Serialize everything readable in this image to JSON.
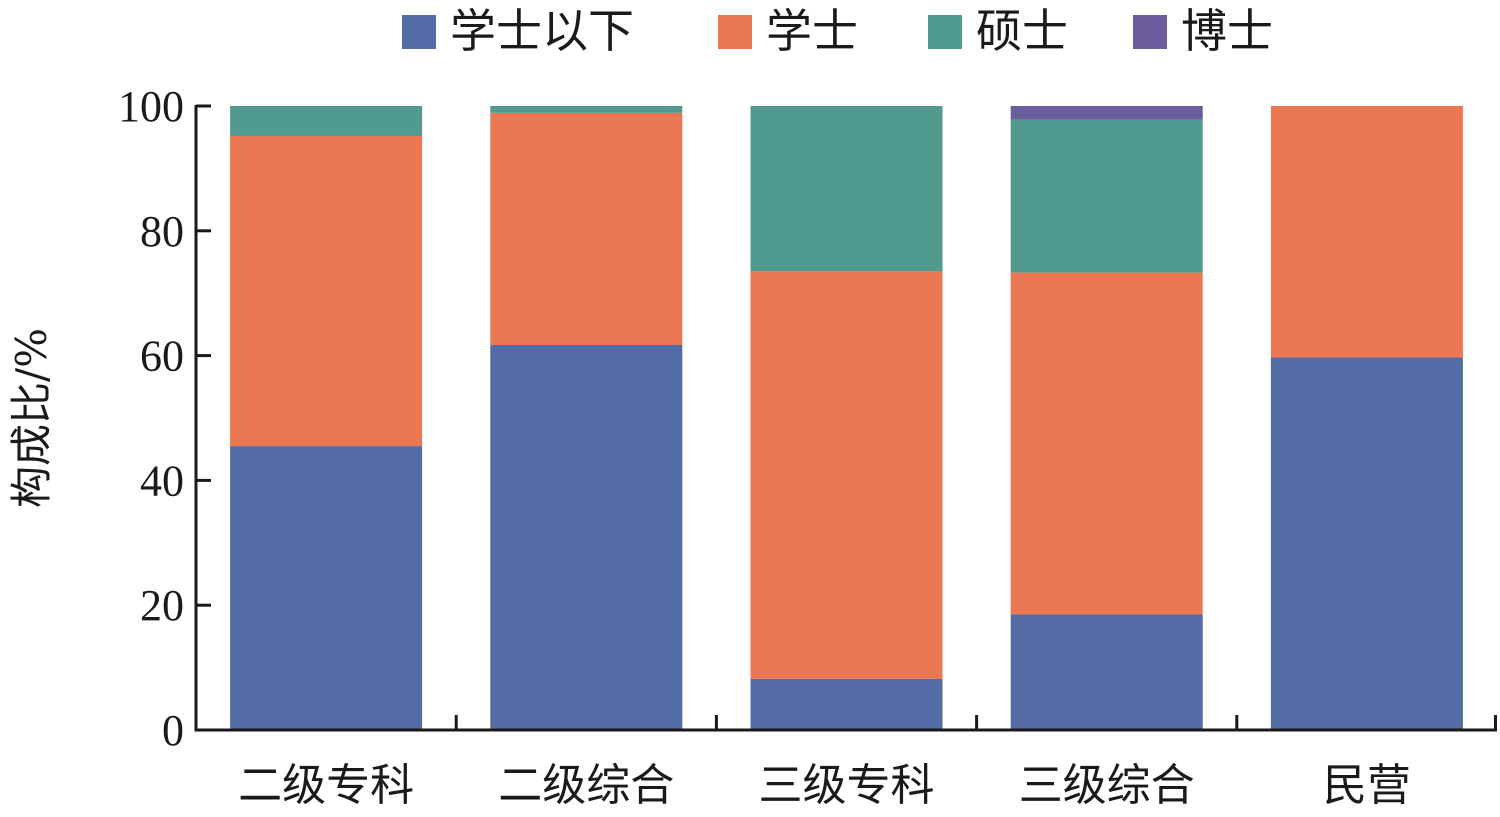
{
  "chart_data": {
    "type": "bar",
    "stacked": true,
    "categories": [
      "二级专科",
      "二级综合",
      "三级专科",
      "三级综合",
      "民营"
    ],
    "series": [
      {
        "name": "学士以下",
        "color": "#536CA6",
        "values": [
          45.5,
          61.7,
          8.2,
          18.5,
          59.7
        ]
      },
      {
        "name": "学士",
        "color": "#EC7853",
        "values": [
          49.7,
          37.2,
          65.3,
          54.8,
          40.3
        ]
      },
      {
        "name": "硕士",
        "color": "#509A8F",
        "values": [
          4.8,
          1.1,
          26.5,
          24.5,
          0
        ]
      },
      {
        "name": "博士",
        "color": "#6A5C9D",
        "values": [
          0,
          0,
          0,
          2.2,
          0
        ]
      }
    ],
    "ylabel": "构成比/%",
    "xlabel": "",
    "ylim": [
      0,
      100
    ],
    "yticks": [
      0,
      20,
      40,
      60,
      80,
      100
    ],
    "grid": false,
    "legend_position": "top"
  }
}
